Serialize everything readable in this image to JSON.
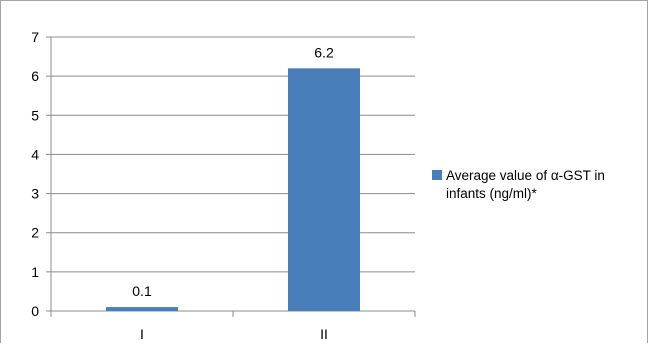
{
  "chart_data": {
    "type": "bar",
    "categories": [
      "I",
      "II"
    ],
    "series": [
      {
        "name": "Average value of α-GST in infants (ng/ml)*",
        "values": [
          0.1,
          6.2
        ],
        "color": "#4a7ebb"
      }
    ],
    "data_labels": [
      "0.1",
      "6.2"
    ],
    "ylim": [
      0,
      7
    ],
    "y_ticks": [
      0,
      1,
      2,
      3,
      4,
      5,
      6,
      7
    ],
    "grid": true,
    "gridline_color": "#8c8c8c",
    "legend_position": "right",
    "legend_lines": [
      "Average value of α-GST in",
      "infants (ng/ml)*"
    ],
    "title": "",
    "xlabel": "",
    "ylabel": ""
  }
}
